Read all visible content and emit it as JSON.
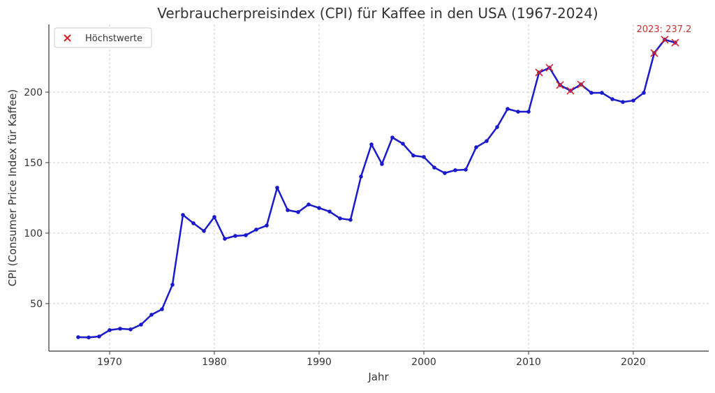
{
  "chart_data": {
    "type": "line",
    "title": "Verbraucherpreisindex (CPI) für Kaffee in den USA (1967-2024)",
    "xlabel": "Jahr",
    "ylabel": "CPI (Consumer Price Index für Kaffee)",
    "xlim": [
      1964.2,
      2027.2
    ],
    "ylim": [
      16.3,
      248
    ],
    "xticks": [
      1970,
      1980,
      1990,
      2000,
      2010,
      2020
    ],
    "yticks": [
      50,
      100,
      150,
      200
    ],
    "grid": true,
    "legend_position": "top-left",
    "line_color": "#1a1acc",
    "highlight_color": "#e02020",
    "x": [
      1967,
      1968,
      1969,
      1970,
      1971,
      1972,
      1973,
      1974,
      1975,
      1976,
      1977,
      1978,
      1979,
      1980,
      1981,
      1982,
      1983,
      1984,
      1985,
      1986,
      1987,
      1988,
      1989,
      1990,
      1991,
      1992,
      1993,
      1994,
      1995,
      1996,
      1997,
      1998,
      1999,
      2000,
      2001,
      2002,
      2003,
      2004,
      2005,
      2006,
      2007,
      2008,
      2009,
      2010,
      2011,
      2012,
      2013,
      2014,
      2015,
      2016,
      2017,
      2018,
      2019,
      2020,
      2021,
      2022,
      2023,
      2024
    ],
    "values": [
      26.2,
      26.0,
      26.7,
      31.2,
      32.2,
      31.7,
      35.1,
      42.1,
      46.0,
      63.4,
      112.9,
      107.0,
      101.5,
      111.4,
      96.0,
      98.0,
      98.5,
      102.5,
      105.4,
      132.2,
      116.3,
      114.9,
      120.3,
      117.8,
      115.3,
      110.4,
      109.4,
      140.1,
      162.9,
      149.0,
      167.8,
      163.4,
      155.0,
      154.0,
      146.5,
      142.6,
      144.6,
      145.0,
      160.9,
      165.3,
      175.2,
      188.1,
      186.1,
      186.1,
      213.9,
      217.3,
      205.0,
      201.0,
      205.4,
      199.5,
      199.5,
      195.0,
      193.0,
      194.0,
      199.5,
      227.7,
      237.2,
      235.1
    ],
    "highlights": {
      "name": "Höchstwerte",
      "x": [
        2011,
        2012,
        2013,
        2014,
        2015,
        2022,
        2023,
        2024
      ],
      "values": [
        213.9,
        217.3,
        205.0,
        201.0,
        205.4,
        227.7,
        237.2,
        235.1
      ]
    },
    "annotation": {
      "x": 2023,
      "y": 237.2,
      "text": "2023: 237.2"
    }
  }
}
